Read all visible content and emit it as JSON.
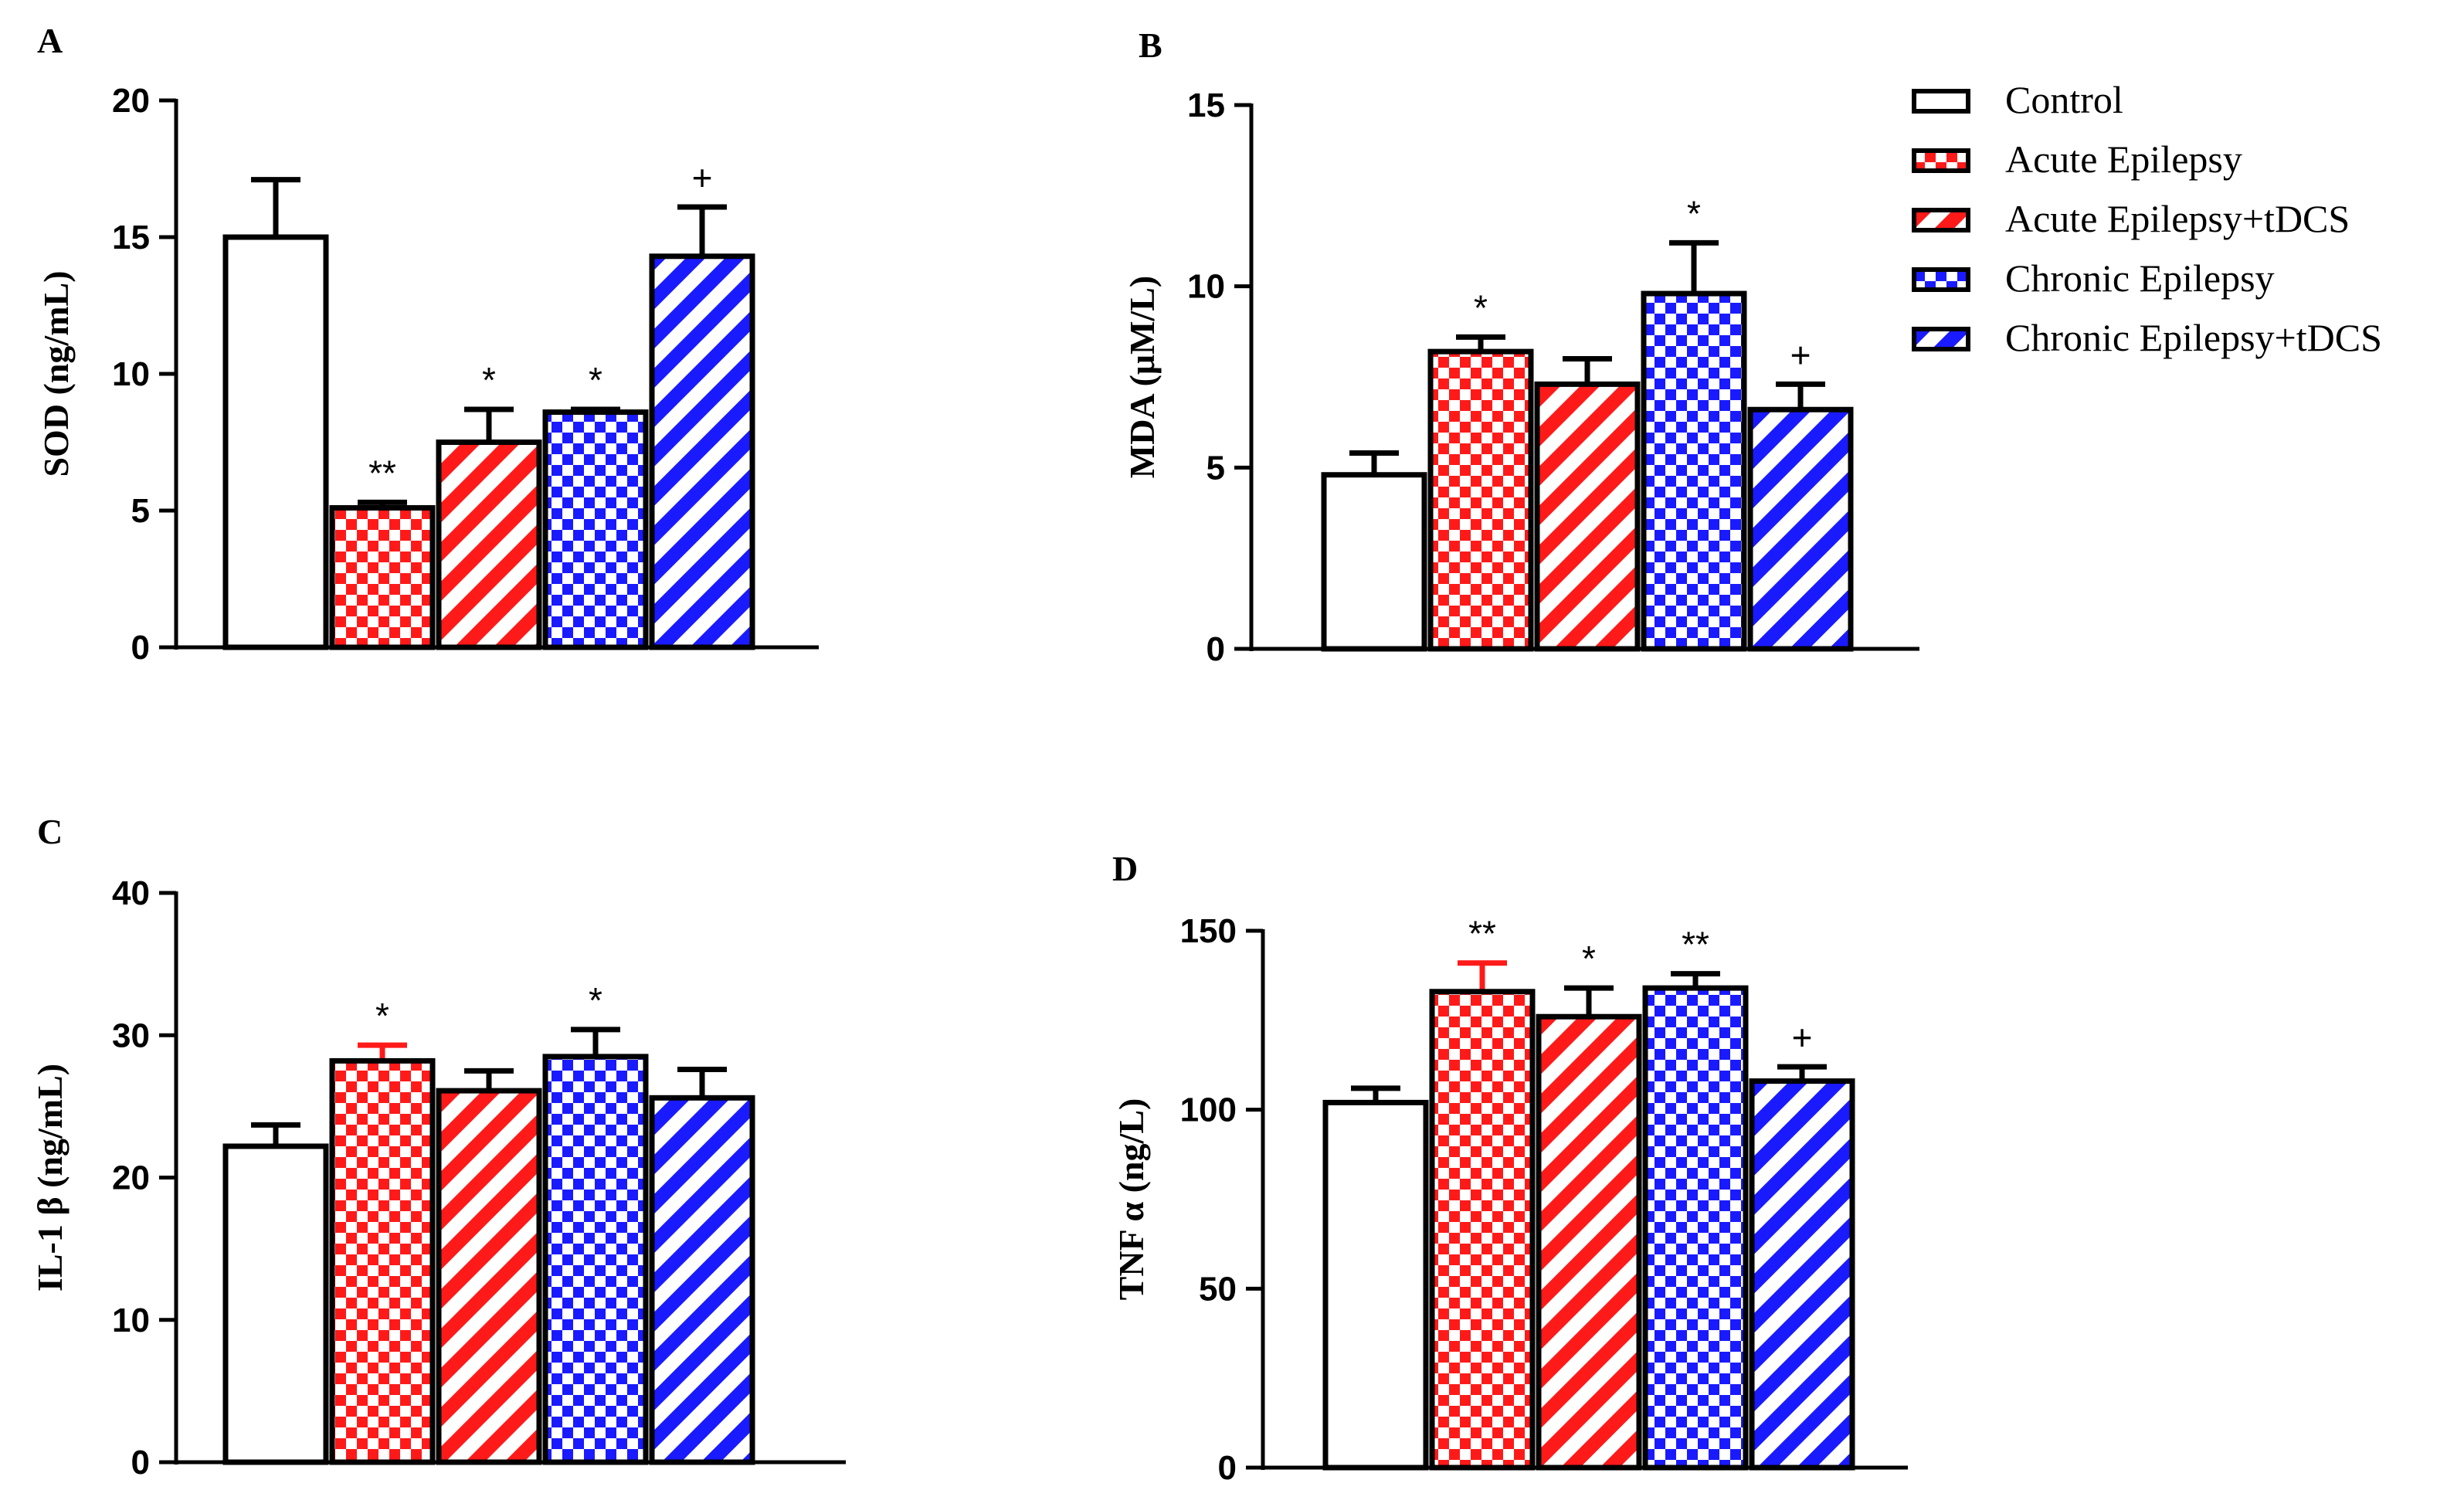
{
  "legend": [
    {
      "label": "Control",
      "fill": "plain",
      "color": "#000000"
    },
    {
      "label": "Acute Epilepsy",
      "fill": "check",
      "color": "#ff1a1a"
    },
    {
      "label": "Acute Epilepsy+tDCS",
      "fill": "hatch",
      "color": "#ff1a1a"
    },
    {
      "label": "Chronic Epilepsy",
      "fill": "check",
      "color": "#1a1aff"
    },
    {
      "label": "Chronic Epilepsy+tDCS",
      "fill": "hatch",
      "color": "#1a1aff"
    }
  ],
  "colors": {
    "red": "#ff1a1a",
    "blue": "#1a1aff",
    "outline": "#000000"
  },
  "chart_data": [
    {
      "panel": "A",
      "type": "bar",
      "ylabel": "SOD (ng/mL)",
      "ylim": [
        0,
        20
      ],
      "yticks": [
        "0",
        "5",
        "10",
        "15",
        "20"
      ],
      "categories": [
        "Control",
        "Acute Epilepsy",
        "Acute Epilepsy+tDCS",
        "Chronic Epilepsy",
        "Chronic Epilepsy+tDCS"
      ],
      "values": [
        15.0,
        5.1,
        7.5,
        8.6,
        14.3
      ],
      "errors": [
        2.1,
        0.2,
        1.2,
        0.1,
        1.8
      ],
      "significance": [
        "",
        "**",
        "*",
        "*",
        "+"
      ]
    },
    {
      "panel": "B",
      "type": "bar",
      "ylabel": "MDA (μM/L)",
      "ylim": [
        0,
        15
      ],
      "yticks": [
        "0",
        "5",
        "10",
        "15"
      ],
      "categories": [
        "Control",
        "Acute Epilepsy",
        "Acute Epilepsy+tDCS",
        "Chronic Epilepsy",
        "Chronic Epilepsy+tDCS"
      ],
      "values": [
        4.8,
        8.2,
        7.3,
        9.8,
        6.6
      ],
      "errors": [
        0.6,
        0.4,
        0.7,
        1.4,
        0.7
      ],
      "significance": [
        "",
        "*",
        "",
        "*",
        "+"
      ]
    },
    {
      "panel": "C",
      "type": "bar",
      "ylabel": "IL-1 β (ng/mL)",
      "ylim": [
        0,
        40
      ],
      "yticks": [
        "0",
        "10",
        "20",
        "30",
        "40"
      ],
      "categories": [
        "Control",
        "Acute Epilepsy",
        "Acute Epilepsy+tDCS",
        "Chronic Epilepsy",
        "Chronic Epilepsy+tDCS"
      ],
      "values": [
        22.2,
        28.2,
        26.1,
        28.5,
        25.6
      ],
      "errors": [
        1.5,
        1.1,
        1.4,
        1.9,
        2.0
      ],
      "significance": [
        "",
        "*",
        "",
        "*",
        ""
      ]
    },
    {
      "panel": "D",
      "type": "bar",
      "ylabel": "TNF α (ng/L)",
      "ylim": [
        0,
        150
      ],
      "yticks": [
        "0",
        "50",
        "100",
        "150"
      ],
      "categories": [
        "Control",
        "Acute Epilepsy",
        "Acute Epilepsy+tDCS",
        "Chronic Epilepsy",
        "Chronic Epilepsy+tDCS"
      ],
      "values": [
        102,
        133,
        126,
        134,
        108
      ],
      "errors": [
        4,
        8,
        8,
        4,
        4
      ],
      "significance": [
        "",
        "**",
        "*",
        "**",
        "+"
      ]
    }
  ]
}
